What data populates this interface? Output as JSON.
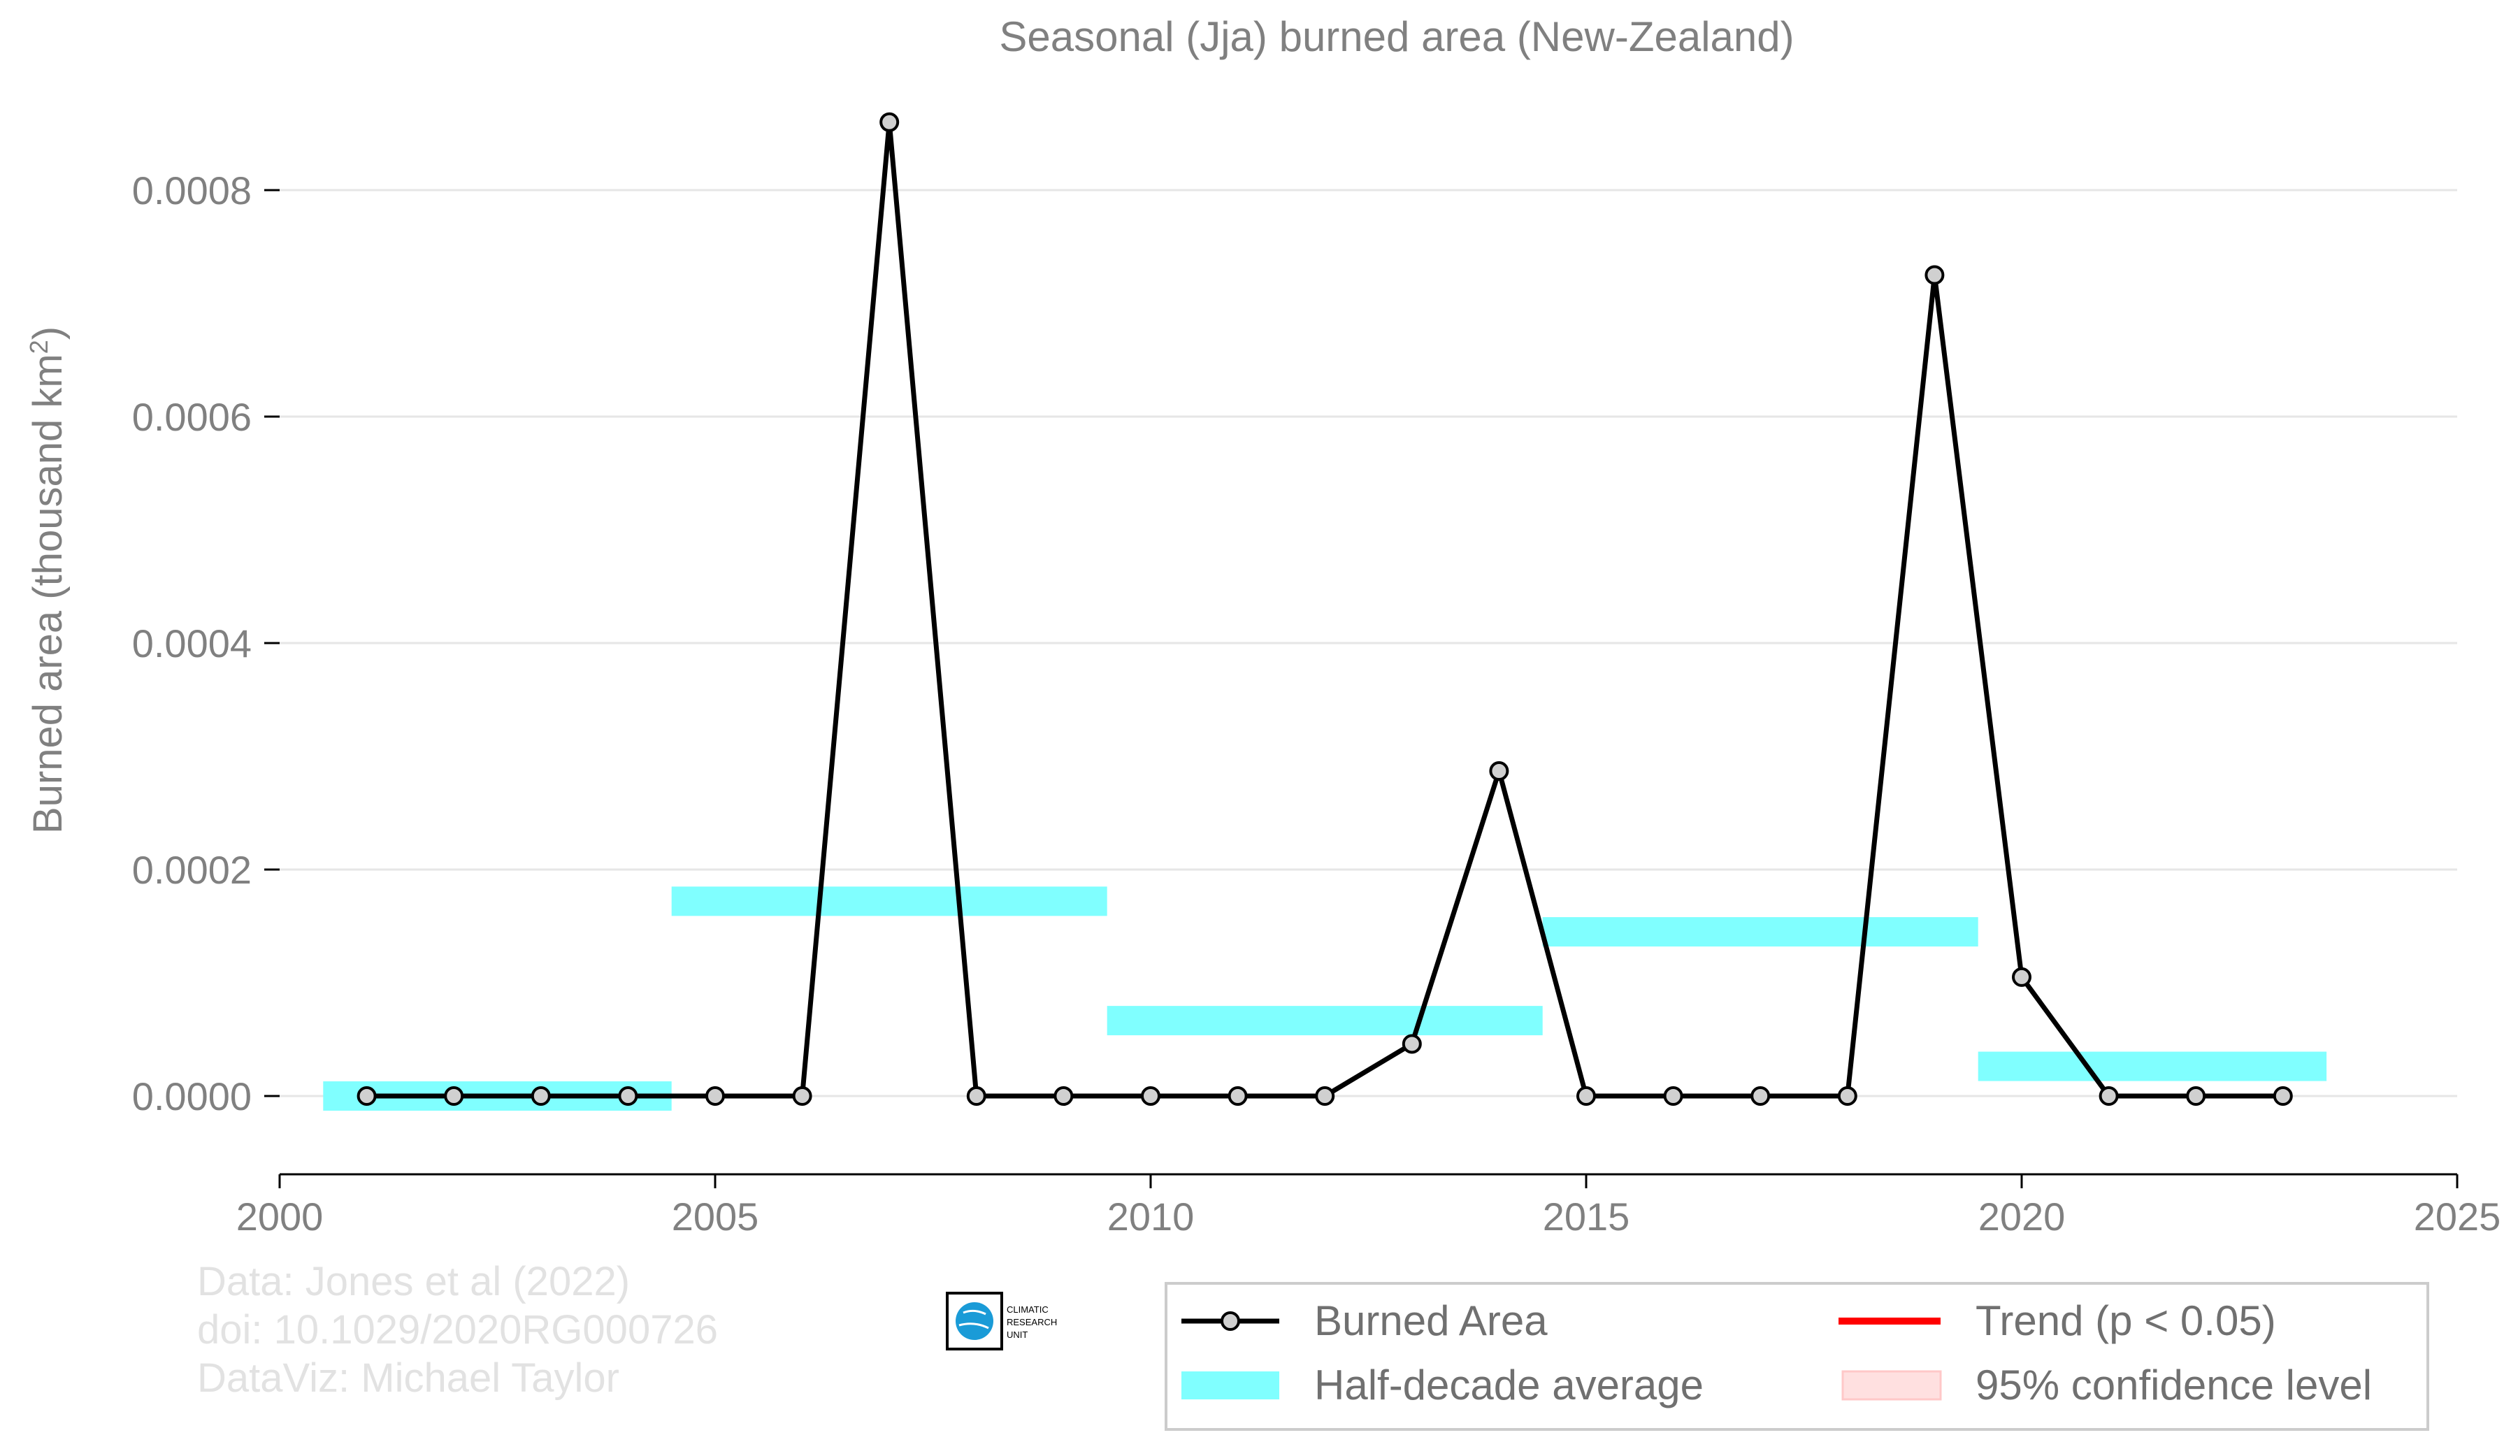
{
  "chart_data": {
    "type": "line",
    "title": "Seasonal (Jja) burned area (New-Zealand)",
    "xlabel": "",
    "ylabel": "Burned area (thousand km",
    "ylabel_sup": "2",
    "ylabel_close": ")",
    "xlim": [
      2000,
      2025
    ],
    "ylim": [
      -7e-05,
      0.00087
    ],
    "x_ticks": [
      2000,
      2005,
      2010,
      2015,
      2020,
      2025
    ],
    "x_tick_labels": [
      "2000",
      "2005",
      "2010",
      "2015",
      "2020",
      "2025"
    ],
    "y_ticks": [
      0,
      0.0002,
      0.0004,
      0.0006,
      0.0008
    ],
    "y_tick_labels": [
      "0.0000",
      "0.0002",
      "0.0004",
      "0.0006",
      "0.0008"
    ],
    "grid": "horizontal",
    "series": [
      {
        "name": "Burned Area",
        "color": "#000000",
        "marker_fill": "#d0d0d0",
        "x": [
          2001,
          2002,
          2003,
          2004,
          2005,
          2006,
          2007,
          2008,
          2009,
          2010,
          2011,
          2012,
          2013,
          2014,
          2015,
          2016,
          2017,
          2018,
          2019,
          2020,
          2021,
          2022,
          2023
        ],
        "y": [
          0,
          0,
          0,
          0,
          0,
          0,
          0.00086,
          0,
          0,
          0,
          0,
          0,
          4.6e-05,
          0.000287,
          0,
          0,
          0,
          0,
          0.000725,
          0.000105,
          0,
          0,
          0
        ]
      }
    ],
    "half_decade_average": {
      "name": "Half-decade average",
      "color": "#80ffff",
      "segments": [
        {
          "x0": 2000.5,
          "x1": 2004.5,
          "y": 0.0
        },
        {
          "x0": 2004.5,
          "x1": 2009.5,
          "y": 0.000172
        },
        {
          "x0": 2009.5,
          "x1": 2014.5,
          "y": 6.66e-05
        },
        {
          "x0": 2014.5,
          "x1": 2019.5,
          "y": 0.000145
        },
        {
          "x0": 2019.5,
          "x1": 2023.5,
          "y": 2.62e-05
        }
      ]
    },
    "legend": {
      "placement": "bottom-right",
      "entries": [
        {
          "label": "Burned Area",
          "kind": "line-marker",
          "color": "#000000"
        },
        {
          "label": "Trend (p < 0.05)",
          "kind": "line",
          "color": "#ff0000"
        },
        {
          "label": "Half-decade average",
          "kind": "patch",
          "color": "#80ffff"
        },
        {
          "label": "95% confidence level",
          "kind": "patch",
          "color": "#ffe0e0"
        }
      ]
    }
  },
  "credits": {
    "line1": "Data: Jones et al (2022)",
    "line2": "doi: 10.1029/2020RG000726",
    "line3": "DataViz: Michael Taylor"
  },
  "logo": {
    "line1": "CLIMATIC",
    "line2": "RESEARCH",
    "line3": "UNIT",
    "icon": "globe-icon"
  }
}
